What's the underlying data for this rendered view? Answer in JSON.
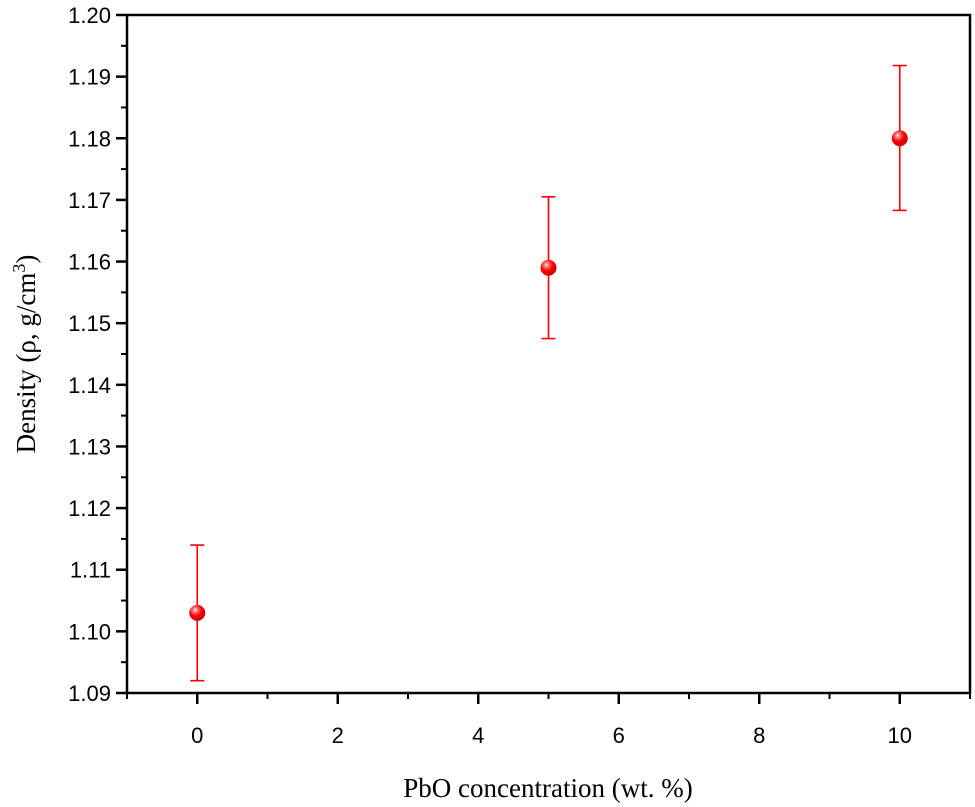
{
  "chart_data": {
    "type": "scatter",
    "title": "",
    "xlabel": "PbO concentration (wt. %)",
    "ylabel": "Density (ρ, g/cm3)",
    "ylabel_parts": {
      "main": "Density (ρ, g/cm",
      "sup": "3",
      "close": ")"
    },
    "xlim": [
      -1,
      11
    ],
    "ylim": [
      1.09,
      1.2
    ],
    "x_ticks": [
      0,
      2,
      4,
      6,
      8,
      10
    ],
    "x_tick_labels": [
      "0",
      "2",
      "4",
      "6",
      "8",
      "10"
    ],
    "y_ticks": [
      1.09,
      1.1,
      1.11,
      1.12,
      1.13,
      1.14,
      1.15,
      1.16,
      1.17,
      1.18,
      1.19,
      1.2
    ],
    "y_tick_labels": [
      "1.09",
      "1.10",
      "1.11",
      "1.12",
      "1.13",
      "1.14",
      "1.15",
      "1.16",
      "1.17",
      "1.18",
      "1.19",
      "1.20"
    ],
    "grid": false,
    "legend": null,
    "series": [
      {
        "name": "Density",
        "color": "#ff0000",
        "marker": "sphere",
        "x": [
          0,
          5,
          10
        ],
        "y": [
          1.103,
          1.159,
          1.18
        ],
        "error": [
          0.011,
          0.0115,
          0.0118
        ],
        "error_low": [
          1.092,
          1.1475,
          1.1683
        ],
        "error_high": [
          1.114,
          1.1705,
          1.1918
        ]
      }
    ]
  }
}
